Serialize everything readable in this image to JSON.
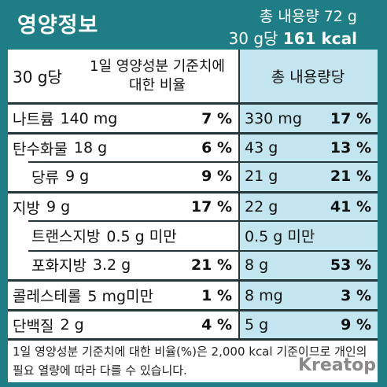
{
  "header": {
    "title": "영양정보",
    "net_content": "총 내용량 72 g",
    "per_serving": "30 g당",
    "calories": "161 kcal"
  },
  "table": {
    "header": [
      "30 g당",
      "1일 영양성분 기준치에 대한 비율",
      "총 내용량당"
    ],
    "rows": [
      [
        "나트륨",
        "140 mg",
        "7 %",
        "330 mg",
        "17 %"
      ],
      [
        "탄수화물",
        "18 g",
        "6 %",
        "43 g",
        "13 %"
      ],
      [
        "당류",
        "9 g",
        "9 %",
        "21 g",
        "21 %"
      ],
      [
        "지방",
        "9 g",
        "17 %",
        "22 g",
        "41 %"
      ],
      [
        "트랜스지방",
        "0.5 g 미만",
        "",
        "0.5 g 미만",
        ""
      ],
      [
        "포화지방",
        "3.2 g",
        "21 %",
        "8 g",
        "53 %"
      ],
      [
        "콜레스테롤",
        "5 mg미만",
        "1 %",
        "8 mg",
        "3 %"
      ],
      [
        "단백질",
        "2 g",
        "4 %",
        "5 g",
        "9 %"
      ]
    ]
  },
  "footer": "1일 영양성분 기준치에 대한 비율(%)은 2,000 kcal 기준이므로 개인의 필요 열량에 따라 다를 수 있습니다.",
  "watermark": "Kreatop"
}
